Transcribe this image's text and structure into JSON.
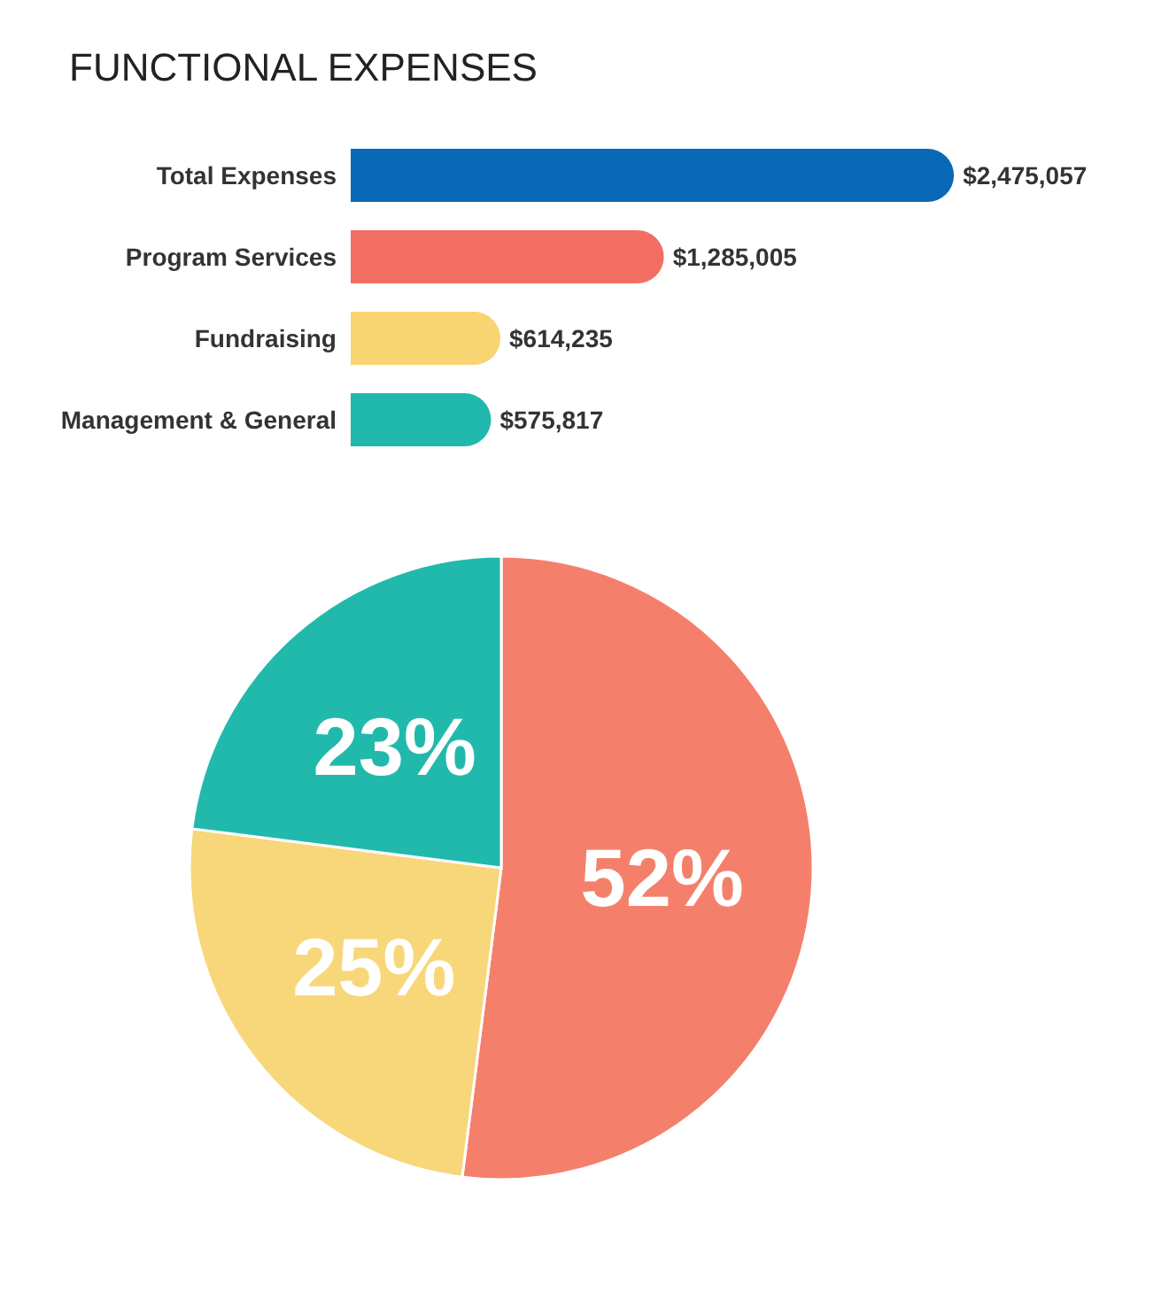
{
  "chart_data": [
    {
      "type": "bar",
      "title": "FUNCTIONAL EXPENSES",
      "orientation": "horizontal",
      "categories": [
        "Total Expenses",
        "Program Services",
        "Fundraising",
        "Management & General"
      ],
      "values": [
        2475057,
        1285005,
        614235,
        575817
      ],
      "colors": [
        "#0a69b6",
        "#f26e63",
        "#f8d472",
        "#21b9ad"
      ],
      "value_labels": [
        "$2,475,057",
        "$1,285,005",
        "$614,235",
        "$575,817"
      ]
    },
    {
      "type": "pie",
      "categories": [
        null,
        null,
        null
      ],
      "values": [
        52,
        25,
        23
      ],
      "colors": [
        "#f4806c",
        "#f8d67a",
        "#22b9ad"
      ],
      "value_labels": [
        "52%",
        "25%",
        "23%"
      ]
    }
  ]
}
